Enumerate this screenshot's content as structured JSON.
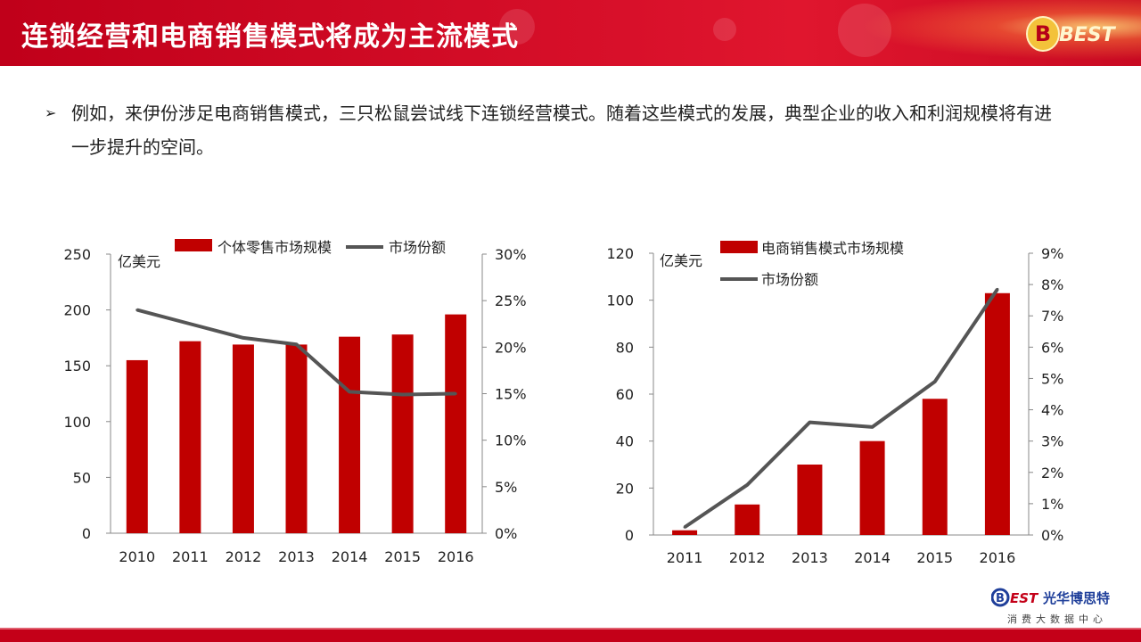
{
  "slide": {
    "title": "连锁经营和电商销售模式将成为主流模式",
    "bullet_marker": "➢",
    "bullet_text": "例如，来伊份涉足电商销售模式，三只松鼠尝试线下连锁经营模式。随着这些模式的发展，典型企业的收入和利润规模将有进一步提升的空间。"
  },
  "brand": {
    "top_logo_text": "BEST",
    "bottom_logo_text": "EST",
    "bottom_logo_b": "B",
    "bottom_logo_cn": "光华博思特",
    "bottom_logo_sub": "消费大数据中心",
    "accent": "#c40018",
    "bar_color": "#c00000",
    "line_color": "#555555"
  },
  "chart_data": [
    {
      "type": "bar",
      "categories": [
        "2010",
        "2011",
        "2012",
        "2013",
        "2014",
        "2015",
        "2016"
      ],
      "series": [
        {
          "name": "个体零售市场规模",
          "type": "bar",
          "axis": "left",
          "values": [
            155,
            172,
            169,
            169,
            176,
            178,
            196
          ]
        },
        {
          "name": "市场份额",
          "type": "line",
          "axis": "right",
          "values": [
            24.0,
            22.5,
            21.0,
            20.3,
            15.2,
            14.9,
            15.0
          ]
        }
      ],
      "ylabel": "亿美元",
      "ylim": [
        0,
        250
      ],
      "yticks": [
        "0",
        "50",
        "100",
        "150",
        "200",
        "250"
      ],
      "y2lim": [
        0,
        30
      ],
      "y2ticks": [
        "0%",
        "5%",
        "10%",
        "15%",
        "20%",
        "25%",
        "30%"
      ],
      "legend": "top",
      "grid": false
    },
    {
      "type": "bar",
      "categories": [
        "2011",
        "2012",
        "2013",
        "2014",
        "2015",
        "2016"
      ],
      "series": [
        {
          "name": "电商销售模式市场规模",
          "type": "bar",
          "axis": "left",
          "values": [
            2,
            13,
            30,
            40,
            58,
            103
          ]
        },
        {
          "name": "市场份额",
          "type": "line",
          "axis": "right",
          "values": [
            0.25,
            1.6,
            3.6,
            3.45,
            4.9,
            7.85
          ]
        }
      ],
      "ylabel": "亿美元",
      "ylim": [
        0,
        120
      ],
      "yticks": [
        "0",
        "20",
        "40",
        "60",
        "80",
        "100",
        "120"
      ],
      "y2lim": [
        0,
        9
      ],
      "y2ticks": [
        "0%",
        "1%",
        "2%",
        "3%",
        "4%",
        "5%",
        "6%",
        "7%",
        "8%",
        "9%"
      ],
      "legend": "top",
      "grid": false
    }
  ]
}
